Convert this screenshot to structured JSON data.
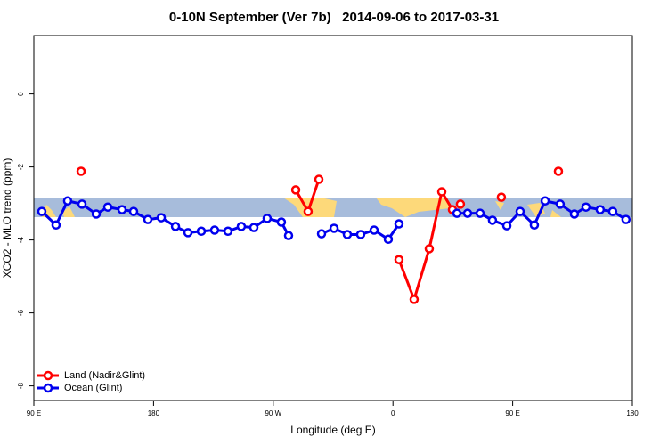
{
  "chart_data": {
    "type": "line",
    "title": "0-10N September (Ver 7b)   2014-09-06 to 2017-03-31",
    "x_label": "Longitude (deg E)",
    "y_label": "XCO2 - MLO trend (ppm)",
    "xlim": [
      90,
      540
    ],
    "xticks": [
      {
        "value": 90,
        "label": "90 E"
      },
      180,
      {
        "value": 270,
        "label": "90 W"
      },
      {
        "value": 360,
        "label": "0"
      },
      {
        "value": 450,
        "label": "90 E"
      },
      {
        "value": 540,
        "label": "180"
      }
    ],
    "ylim": [
      -8.4,
      1.6
    ],
    "yticks": [
      0,
      -2,
      -4,
      -6,
      -8
    ],
    "grid": false,
    "legend": "bottom-left",
    "series": [
      {
        "name": "Land (Nadir&Glint)",
        "color": "#ff0000",
        "x": [
          125.5,
          null,
          286.9,
          296.2,
          304.3,
          null,
          364.5,
          375.9,
          387.3,
          396.7,
          404.7,
          null,
          410.7,
          null,
          441.5,
          null,
          484.4
        ],
        "values": [
          -2.12,
          null,
          -2.63,
          -3.22,
          -2.34,
          null,
          -4.54,
          -5.63,
          -4.24,
          -2.68,
          -3.17,
          null,
          -3.02,
          null,
          -2.83,
          null,
          -2.12
        ]
      },
      {
        "name": "Ocean (Glint)",
        "color": "#0000ee",
        "x": [
          96.0,
          106.7,
          115.4,
          126.2,
          136.9,
          145.6,
          156.3,
          165.0,
          175.7,
          185.8,
          196.5,
          205.9,
          215.9,
          225.9,
          236.0,
          246.0,
          255.4,
          265.4,
          276.1,
          281.5,
          null,
          306.3,
          315.7,
          325.7,
          335.7,
          345.8,
          356.5,
          364.5,
          null,
          408.1,
          416.1,
          425.5,
          434.8,
          445.6,
          455.6,
          466.3,
          474.4,
          485.7,
          496.4,
          505.1,
          515.8,
          525.2,
          535.2
        ],
        "values": [
          -3.22,
          -3.59,
          -2.93,
          -3.02,
          -3.29,
          -3.1,
          -3.17,
          -3.22,
          -3.44,
          -3.39,
          -3.63,
          -3.8,
          -3.76,
          -3.73,
          -3.76,
          -3.63,
          -3.66,
          -3.41,
          -3.51,
          -3.88,
          null,
          -3.83,
          -3.68,
          -3.85,
          -3.85,
          -3.73,
          -3.98,
          -3.56,
          null,
          -3.27,
          -3.27,
          -3.27,
          -3.46,
          -3.61,
          -3.22,
          -3.59,
          -2.93,
          -3.02,
          -3.29,
          -3.1,
          -3.17,
          -3.22,
          -3.44
        ]
      }
    ]
  }
}
